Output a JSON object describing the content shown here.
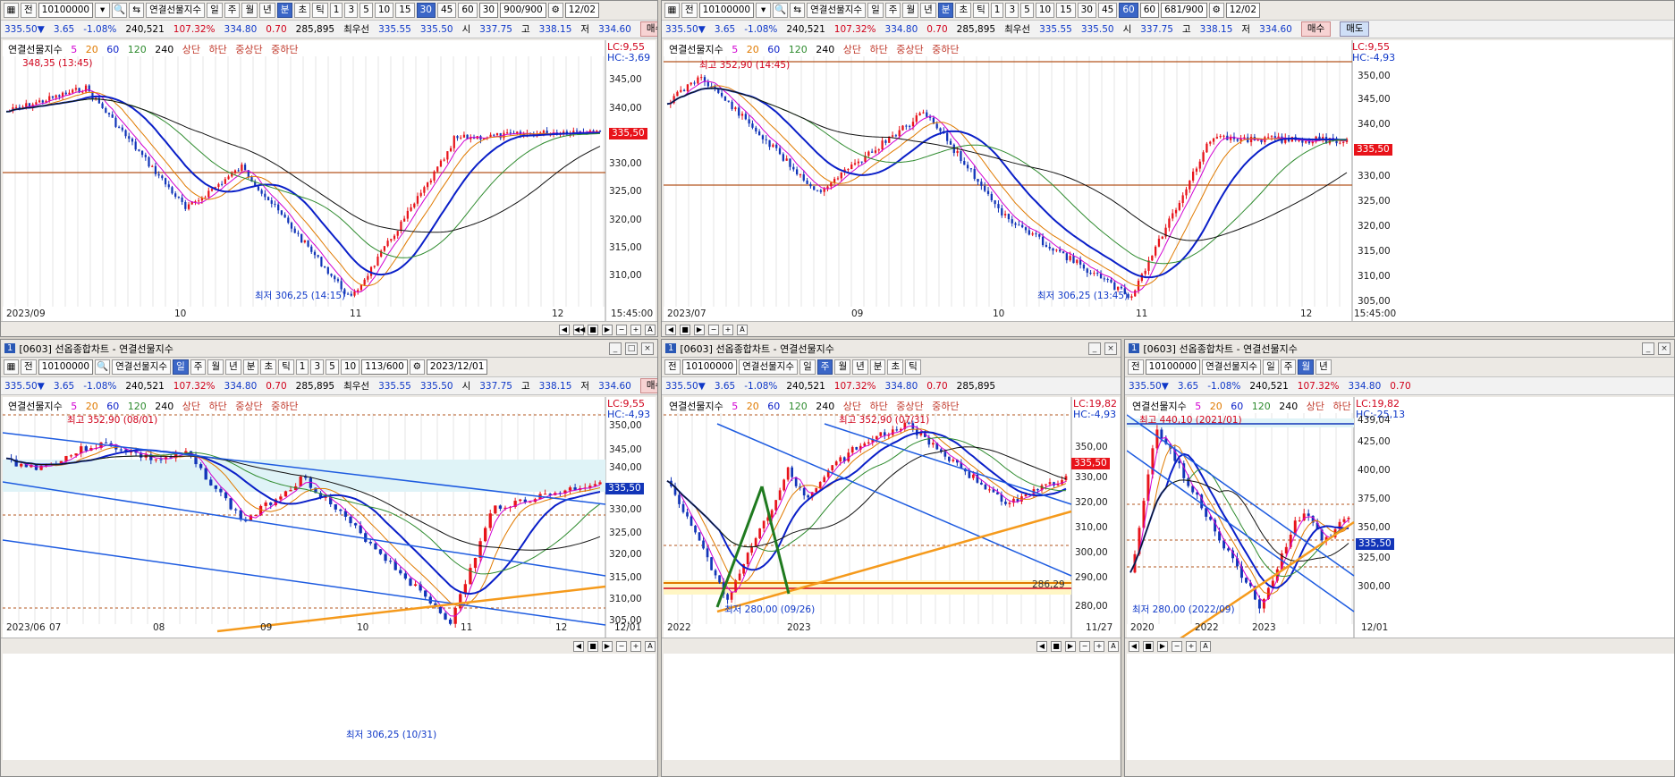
{
  "common": {
    "code": "10100000",
    "name": "연결선물지수",
    "periods": [
      "일",
      "주",
      "월",
      "년",
      "분",
      "초",
      "틱"
    ],
    "intervals": [
      "1",
      "3",
      "5",
      "10",
      "15",
      "30",
      "45",
      "60"
    ],
    "quote": {
      "price": "335.50▼",
      "change": "3.65",
      "rate": "-1.08%",
      "volume": "240,521",
      "vol_ratio": "107.32%",
      "p2": "334.80",
      "p3": "0.70",
      "oi": "285,895",
      "best_label": "최우선",
      "best_ask": "335.55",
      "best_bid": "335.50",
      "open_label": "시",
      "open": "337.75",
      "high_label": "고",
      "high": "338.15",
      "low_label": "저",
      "low": "334.60"
    },
    "buy": "매수",
    "sell": "매도",
    "ma_legend": [
      "5",
      "20",
      "60",
      "120",
      "240"
    ],
    "bands": [
      "상단",
      "하단",
      "중상단",
      "중하단"
    ],
    "window_title": "[0603] 선옵종합차트 - 연결선물지수",
    "last_price": "335,50",
    "colors": {
      "up": "#e8131a",
      "down": "#1235b8",
      "ma5": "#d200d2",
      "ma20": "#e07a00",
      "ma60": "#0a1fc8",
      "ma120": "#2e8b2e",
      "ma240": "#111111"
    }
  },
  "panels": {
    "p1": {
      "sel": "30",
      "ctrl1": "30",
      "count": "900/900",
      "date": "12/02",
      "lc": "LC:9,55",
      "hc": "HC:-3,69",
      "yticks": [
        "345,00",
        "340,00",
        "335,00",
        "330,00",
        "325,00",
        "320,00",
        "315,00",
        "310,00"
      ],
      "xticks": [
        "2023/09",
        "10",
        "11",
        "12"
      ],
      "time": "15:45:00",
      "hi": "348,35 (13:45)",
      "lo": "최저 306,25 (14:15)"
    },
    "p2": {
      "sel": "60",
      "ctrl1": "60",
      "count": "681/900",
      "date": "12/02",
      "lc": "LC:9,55",
      "hc": "HC:-4,93",
      "yticks": [
        "350,00",
        "345,00",
        "340,00",
        "335,00",
        "330,00",
        "325,00",
        "320,00",
        "315,00",
        "310,00",
        "305,00"
      ],
      "xticks": [
        "2023/07",
        "09",
        "10",
        "11",
        "12"
      ],
      "time": "15:45:00",
      "hi": "최고 352,90 (14:45)",
      "lo": "최저 306,25 (13:45)"
    },
    "p3": {
      "sel": "일",
      "count": "113/600",
      "date": "2023/12/01",
      "lc": "LC:9,55",
      "hc": "HC:-4,93",
      "yticks": [
        "350,00",
        "345,00",
        "340,00",
        "335,00",
        "330,00",
        "325,00",
        "320,00",
        "315,00",
        "310,00",
        "305,00"
      ],
      "xticks": [
        "2023/06",
        "07",
        "08",
        "09",
        "10",
        "11",
        "12"
      ],
      "date2": "12/01",
      "hi": "최고 352,90 (08/01)",
      "lo": "최저 306,25 (10/31)"
    },
    "p4": {
      "sel": "주",
      "lc": "LC:19,82",
      "hc": "HC:-4,93",
      "yticks": [
        "350,00",
        "340,00",
        "330,00",
        "320,00",
        "310,00",
        "300,00",
        "290,00",
        "280,00"
      ],
      "xticks": [
        "2022",
        "2023"
      ],
      "date2": "11/27",
      "hi": "최고 352,90 (07/31)",
      "lo": "최저 280,00 (09/26)",
      "level": "286,29"
    },
    "p5": {
      "sel": "월",
      "lc": "LC:19,82",
      "hc": "HC:-25,13",
      "yticks": [
        "425,00",
        "400,00",
        "375,00",
        "350,00",
        "325,00",
        "300,00"
      ],
      "xticks": [
        "2020",
        "2022",
        "2023"
      ],
      "date2": "12/01",
      "hi": "최고 440,10 (2021/01)",
      "lo": "최저 280,00 (2022/09)",
      "level": "439,04"
    }
  }
}
